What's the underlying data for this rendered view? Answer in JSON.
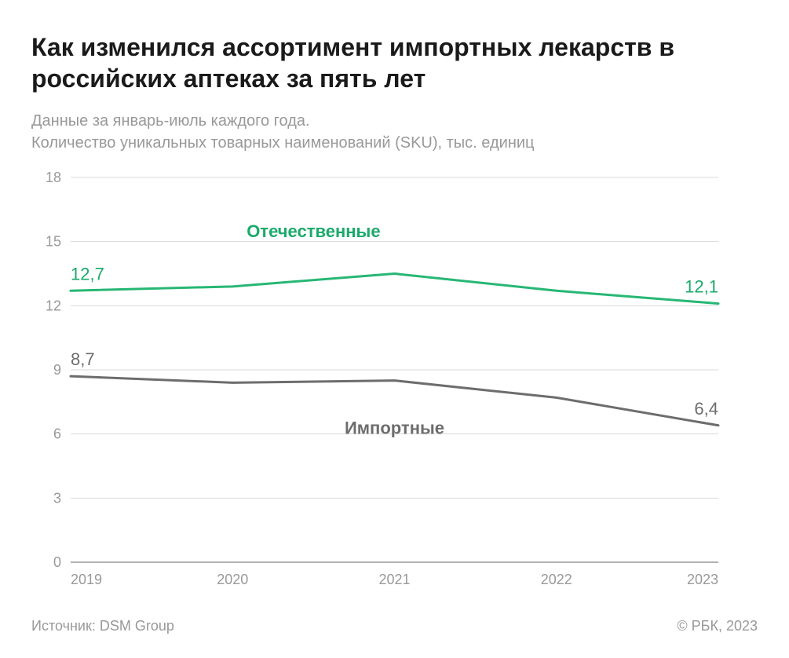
{
  "title": "Как изменился ассортимент импортных лекарств в российских аптеках за пять лет",
  "subtitle_line1": "Данные за январь-июль каждого года.",
  "subtitle_line2": "Количество уникальных товарных наименований (SKU), тыс. единиц",
  "source_label": "Источник: DSM Group",
  "copyright_label": "© РБК, 2023",
  "chart": {
    "type": "line",
    "background_color": "#ffffff",
    "grid_color": "#d9d9d9",
    "axis_baseline_color": "#999999",
    "x_categories": [
      "2019",
      "2020",
      "2021",
      "2022",
      "2023"
    ],
    "ylim": [
      0,
      18
    ],
    "yticks": [
      0,
      3,
      6,
      9,
      12,
      15,
      18
    ],
    "y_tick_fontsize": 18,
    "x_tick_fontsize": 18,
    "tick_color": "#999999",
    "line_width": 3,
    "series": [
      {
        "name": "Отечественные",
        "label": "Отечественные",
        "label_color": "#1aaa6b",
        "color": "#27b774",
        "values": [
          12.7,
          12.9,
          13.5,
          12.7,
          12.1
        ],
        "first_value_label": "12,7",
        "last_value_label": "12,1",
        "label_x_index": 1.5,
        "label_y": 15.2
      },
      {
        "name": "Импортные",
        "label": "Импортные",
        "label_color": "#6d6d6d",
        "color": "#6d6d6d",
        "values": [
          8.7,
          8.4,
          8.5,
          7.7,
          6.4
        ],
        "first_value_label": "8,7",
        "last_value_label": "6,4",
        "label_x_index": 2.0,
        "label_y": 6.0
      }
    ],
    "value_label_fontsize": 22,
    "series_label_fontsize": 22,
    "series_label_fontweight": "600"
  }
}
